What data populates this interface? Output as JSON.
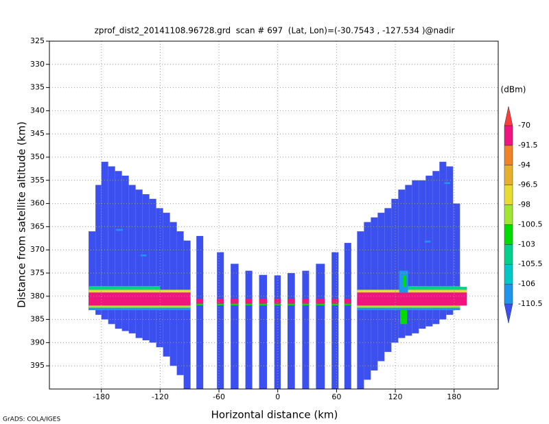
{
  "chart_data": {
    "type": "heatmap",
    "title": "zprof_dist2_20141108.96728.grd  scan # 697  (Lat, Lon)=(-30.7543 , -127.534 )@nadir",
    "xlabel": "Horizontal distance (km)",
    "ylabel": "Distance from satellite altitude (km)",
    "footer": "GrADS: COLA/IGES",
    "xlim": [
      -233,
      225
    ],
    "ylim": [
      325,
      400
    ],
    "xticks": [
      -180,
      -120,
      -60,
      0,
      60,
      120,
      180
    ],
    "yticks": [
      325,
      330,
      335,
      340,
      345,
      350,
      355,
      360,
      365,
      370,
      375,
      380,
      385,
      390,
      395
    ],
    "grid": true,
    "colorbar": {
      "label": "(dBm)",
      "levels": [
        -110.5,
        -106,
        -105.5,
        -103,
        -100.5,
        -98,
        -96.5,
        -94,
        -91.5,
        -70
      ],
      "colors": [
        "#3c50ef",
        "#1e96f0",
        "#00c8c8",
        "#00d28c",
        "#00dc00",
        "#a0e632",
        "#e6dc32",
        "#e6af2d",
        "#f08228",
        "#f0147e",
        "#fa3c3c"
      ]
    },
    "columns": [
      {
        "x": [
          -193,
          -186
        ],
        "y": [
          366,
          383
        ],
        "value": -115
      },
      {
        "x": [
          -186,
          -180
        ],
        "y": [
          356,
          384
        ],
        "value": -115
      },
      {
        "x": [
          -180,
          -173
        ],
        "y": [
          351,
          385
        ],
        "value": -115
      },
      {
        "x": [
          -173,
          -166
        ],
        "y": [
          352,
          386
        ],
        "value": -115
      },
      {
        "x": [
          -166,
          -159
        ],
        "y": [
          353,
          387
        ],
        "value": -115
      },
      {
        "x": [
          -159,
          -152
        ],
        "y": [
          354,
          387.5
        ],
        "value": -115
      },
      {
        "x": [
          -152,
          -145
        ],
        "y": [
          356,
          388
        ],
        "value": -115
      },
      {
        "x": [
          -145,
          -138
        ],
        "y": [
          357,
          389
        ],
        "value": -115
      },
      {
        "x": [
          -138,
          -131
        ],
        "y": [
          358,
          389.5
        ],
        "value": -115
      },
      {
        "x": [
          -131,
          -124
        ],
        "y": [
          359,
          390
        ],
        "value": -115
      },
      {
        "x": [
          -124,
          -117
        ],
        "y": [
          361,
          391
        ],
        "value": -115
      },
      {
        "x": [
          -117,
          -110
        ],
        "y": [
          362,
          393
        ],
        "value": -115
      },
      {
        "x": [
          -110,
          -103
        ],
        "y": [
          364,
          395
        ],
        "value": -115
      },
      {
        "x": [
          -103,
          -96
        ],
        "y": [
          366,
          397
        ],
        "value": -115
      },
      {
        "x": [
          -96,
          -89
        ],
        "y": [
          368,
          400
        ],
        "value": -115
      },
      {
        "x": [
          -83,
          -76
        ],
        "y": [
          367,
          400
        ],
        "value": -115
      },
      {
        "x": [
          -62,
          -55
        ],
        "y": [
          370.5,
          400
        ],
        "value": -115
      },
      {
        "x": [
          -48,
          -40
        ],
        "y": [
          373,
          400
        ],
        "value": -115
      },
      {
        "x": [
          -33,
          -26
        ],
        "y": [
          374.5,
          400
        ],
        "value": -115
      },
      {
        "x": [
          -19,
          -11
        ],
        "y": [
          375.4,
          400
        ],
        "value": -115
      },
      {
        "x": [
          -3.5,
          3
        ],
        "y": [
          375.5,
          400
        ],
        "value": -115
      },
      {
        "x": [
          10,
          17.5
        ],
        "y": [
          375,
          400
        ],
        "value": -115
      },
      {
        "x": [
          25,
          32
        ],
        "y": [
          374.5,
          400
        ],
        "value": -115
      },
      {
        "x": [
          39,
          48
        ],
        "y": [
          373,
          400
        ],
        "value": -115
      },
      {
        "x": [
          55,
          62
        ],
        "y": [
          370.5,
          400
        ],
        "value": -115
      },
      {
        "x": [
          68,
          75
        ],
        "y": [
          368.5,
          400
        ],
        "value": -115
      },
      {
        "x": [
          81,
          88
        ],
        "y": [
          366,
          400
        ],
        "value": -115
      },
      {
        "x": [
          88,
          95
        ],
        "y": [
          364,
          398
        ],
        "value": -115
      },
      {
        "x": [
          95,
          102
        ],
        "y": [
          363,
          396
        ],
        "value": -115
      },
      {
        "x": [
          102,
          109
        ],
        "y": [
          362,
          394
        ],
        "value": -115
      },
      {
        "x": [
          109,
          116
        ],
        "y": [
          361,
          392
        ],
        "value": -115
      },
      {
        "x": [
          116,
          123
        ],
        "y": [
          359,
          390
        ],
        "value": -115
      },
      {
        "x": [
          123,
          130
        ],
        "y": [
          357,
          389
        ],
        "value": -115
      },
      {
        "x": [
          130,
          137
        ],
        "y": [
          356,
          388.5
        ],
        "value": -115
      },
      {
        "x": [
          137,
          144
        ],
        "y": [
          355,
          388
        ],
        "value": -115
      },
      {
        "x": [
          144,
          151
        ],
        "y": [
          355,
          387
        ],
        "value": -115
      },
      {
        "x": [
          151,
          158
        ],
        "y": [
          354,
          386.5
        ],
        "value": -115
      },
      {
        "x": [
          158,
          165
        ],
        "y": [
          353,
          386
        ],
        "value": -115
      },
      {
        "x": [
          165,
          172
        ],
        "y": [
          351,
          385
        ],
        "value": -115
      },
      {
        "x": [
          172,
          179
        ],
        "y": [
          352,
          384
        ],
        "value": -115
      },
      {
        "x": [
          179,
          186
        ],
        "y": [
          360,
          383
        ],
        "value": -115
      },
      {
        "x": [
          186,
          193
        ],
        "y": [
          378,
          382
        ],
        "value": -115
      }
    ],
    "overlays": [
      {
        "x": [
          -193,
          -120
        ],
        "y": [
          377.8,
          378.6
        ],
        "value": -104
      },
      {
        "x": [
          130,
          193
        ],
        "y": [
          377.8,
          378.6
        ],
        "value": -104
      },
      {
        "x": [
          -193,
          -89
        ],
        "y": [
          378.6,
          379.2
        ],
        "value": -97
      },
      {
        "x": [
          81,
          193
        ],
        "y": [
          378.6,
          379.2
        ],
        "value": -97
      },
      {
        "x": [
          -193,
          -89
        ],
        "y": [
          379.2,
          382
        ],
        "value": -85
      },
      {
        "x": [
          -89,
          81
        ],
        "y": [
          380.5,
          381.6
        ],
        "value": -85
      },
      {
        "x": [
          81,
          193
        ],
        "y": [
          379.2,
          382
        ],
        "value": -85
      },
      {
        "x": [
          -89,
          81
        ],
        "y": [
          381.6,
          382
        ],
        "value": -101
      },
      {
        "x": [
          -193,
          -89
        ],
        "y": [
          382,
          382.5
        ],
        "value": -99
      },
      {
        "x": [
          81,
          193
        ],
        "y": [
          382,
          382.5
        ],
        "value": -99
      },
      {
        "x": [
          -193,
          -89
        ],
        "y": [
          382.5,
          383
        ],
        "value": -107
      },
      {
        "x": [
          81,
          193
        ],
        "y": [
          382.5,
          383
        ],
        "value": -107
      },
      {
        "x": [
          124,
          133
        ],
        "y": [
          374.5,
          379.2
        ],
        "value": -107
      },
      {
        "x": [
          128,
          131
        ],
        "y": [
          375.5,
          378
        ],
        "value": -102
      },
      {
        "x": [
          125,
          132
        ],
        "y": [
          383,
          386
        ],
        "value": -102
      },
      {
        "x": [
          -165,
          -158
        ],
        "y": [
          365.5,
          365.9
        ],
        "value": -108
      },
      {
        "x": [
          -140,
          -134
        ],
        "y": [
          371,
          371.4
        ],
        "value": -108
      },
      {
        "x": [
          150,
          156
        ],
        "y": [
          368,
          368.4
        ],
        "value": -108
      },
      {
        "x": [
          170,
          176
        ],
        "y": [
          355.4,
          355.8
        ],
        "value": -108
      }
    ]
  }
}
